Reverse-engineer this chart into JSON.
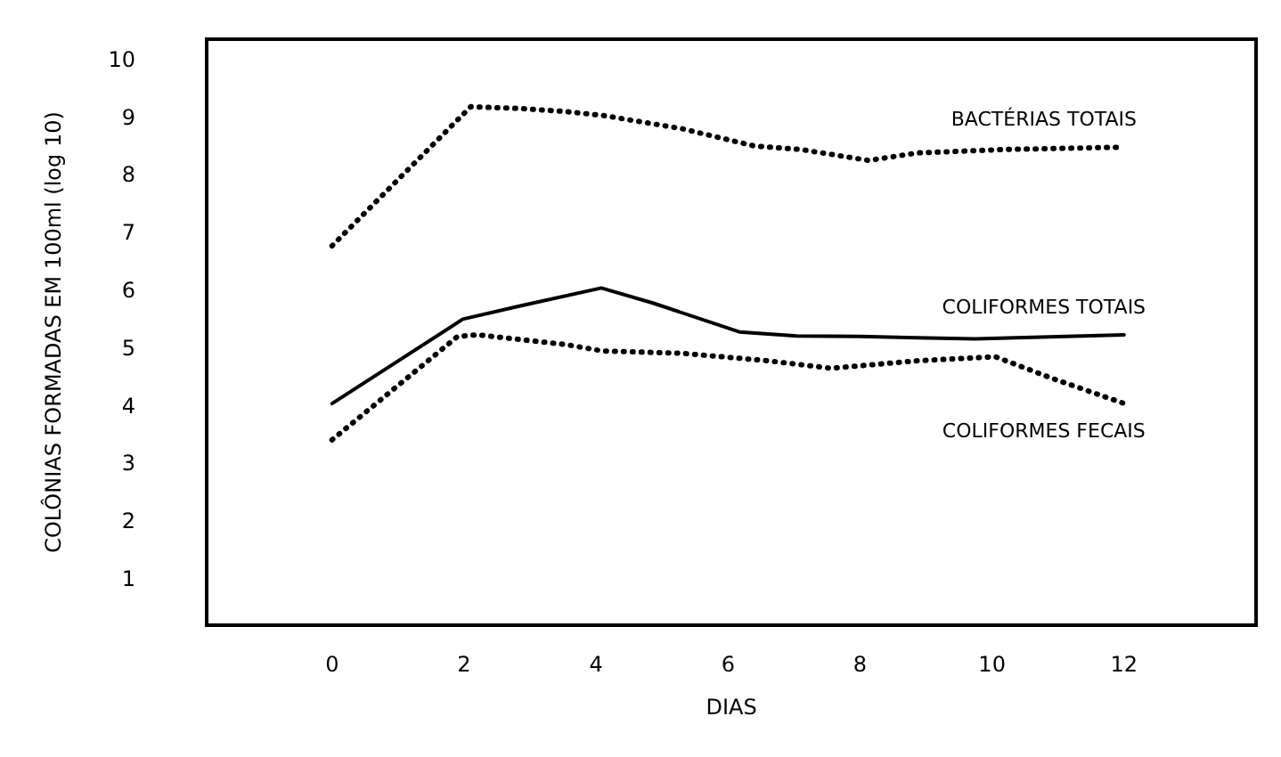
{
  "chart_data": {
    "type": "line",
    "xlabel": "DIAS",
    "ylabel": "COLÔNIAS FORMADAS EM 100ml (log 10)",
    "xlim": [
      -1.9,
      14
    ],
    "xticks": [
      0,
      2,
      4,
      6,
      8,
      10,
      12
    ],
    "ylim": [
      0.2,
      10.35
    ],
    "yticks": [
      1,
      2,
      3,
      4,
      5,
      6,
      7,
      8,
      9,
      10
    ],
    "grid": false,
    "legend": false,
    "marker": "none",
    "series": [
      {
        "name": "BACTÉRIAS TOTAIS",
        "color": "#000000",
        "line_style": "dotted",
        "x": [
          0,
          2.1,
          2.85,
          3.5,
          4.1,
          5.3,
          6.4,
          7.1,
          8.13,
          8.87,
          10.2,
          12
        ],
        "values": [
          6.77,
          9.18,
          9.15,
          9.1,
          9.03,
          8.8,
          8.5,
          8.44,
          8.25,
          8.38,
          8.44,
          8.48
        ]
      },
      {
        "name": "COLIFORMES TOTAIS",
        "color": "#000000",
        "line_style": "solid",
        "x": [
          0,
          1.98,
          2.85,
          4.08,
          4.86,
          6.17,
          7.04,
          8,
          9.74,
          12
        ],
        "values": [
          4.04,
          5.5,
          5.73,
          6.04,
          5.78,
          5.28,
          5.21,
          5.2,
          5.16,
          5.23
        ]
      },
      {
        "name": "COLIFORMES FECAIS",
        "color": "#000000",
        "line_style": "dotted",
        "x": [
          0,
          1.9,
          2.2,
          3.55,
          4.1,
          5.3,
          6.6,
          7.56,
          8.87,
          10.05,
          10.9,
          12
        ],
        "values": [
          3.41,
          5.2,
          5.23,
          5.06,
          4.95,
          4.91,
          4.78,
          4.65,
          4.78,
          4.85,
          4.48,
          4.04
        ]
      }
    ]
  }
}
